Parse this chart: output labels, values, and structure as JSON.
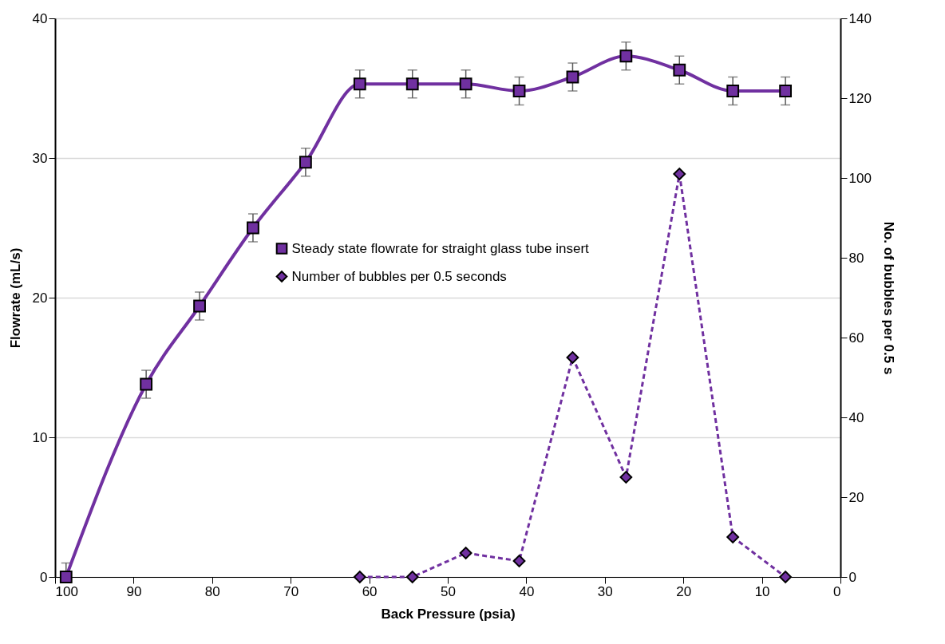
{
  "chart_data": {
    "type": "line",
    "xlabel": "Back Pressure (psia)",
    "ylabel": "Flowrate (mL/s)",
    "y2label": "No. of bubbles per 0.5 s",
    "x": [
      98.6,
      88.4,
      81.6,
      74.8,
      68.1,
      61.2,
      54.5,
      47.7,
      40.9,
      34.1,
      27.3,
      20.5,
      13.7,
      7.0
    ],
    "series": [
      {
        "name": "Steady state flowrate for straight glass tube insert",
        "color": "#7030a0",
        "marker": "square",
        "line_style": "solid",
        "values": [
          0,
          13.8,
          19.4,
          25.0,
          29.7,
          35.3,
          35.3,
          35.3,
          34.8,
          35.8,
          37.3,
          36.3,
          34.8,
          34.8
        ],
        "errors": [
          [
            0,
            1
          ],
          1,
          1,
          1,
          1,
          1,
          1,
          1,
          1,
          1,
          1,
          1,
          1,
          1
        ]
      },
      {
        "name": "Number of bubbles per 0.5 seconds",
        "color": "#7030a0",
        "marker": "diamond",
        "line_style": "dashed",
        "axis": "y2",
        "x": [
          61.2,
          54.5,
          47.7,
          40.9,
          34.1,
          27.3,
          20.5,
          13.7,
          7.0
        ],
        "values": [
          0,
          0,
          6,
          4,
          55,
          25,
          101,
          10,
          0
        ]
      }
    ],
    "xlim": [
      100,
      0
    ],
    "xticks": [
      100,
      90,
      80,
      70,
      60,
      50,
      40,
      30,
      20,
      10,
      0
    ],
    "ylim": [
      0,
      40
    ],
    "yticks": [
      0,
      10,
      20,
      30,
      40
    ],
    "y2lim": [
      0,
      140
    ],
    "y2ticks": [
      0,
      20,
      40,
      60,
      80,
      100,
      120,
      140
    ],
    "grid": "y",
    "legend": "left"
  }
}
